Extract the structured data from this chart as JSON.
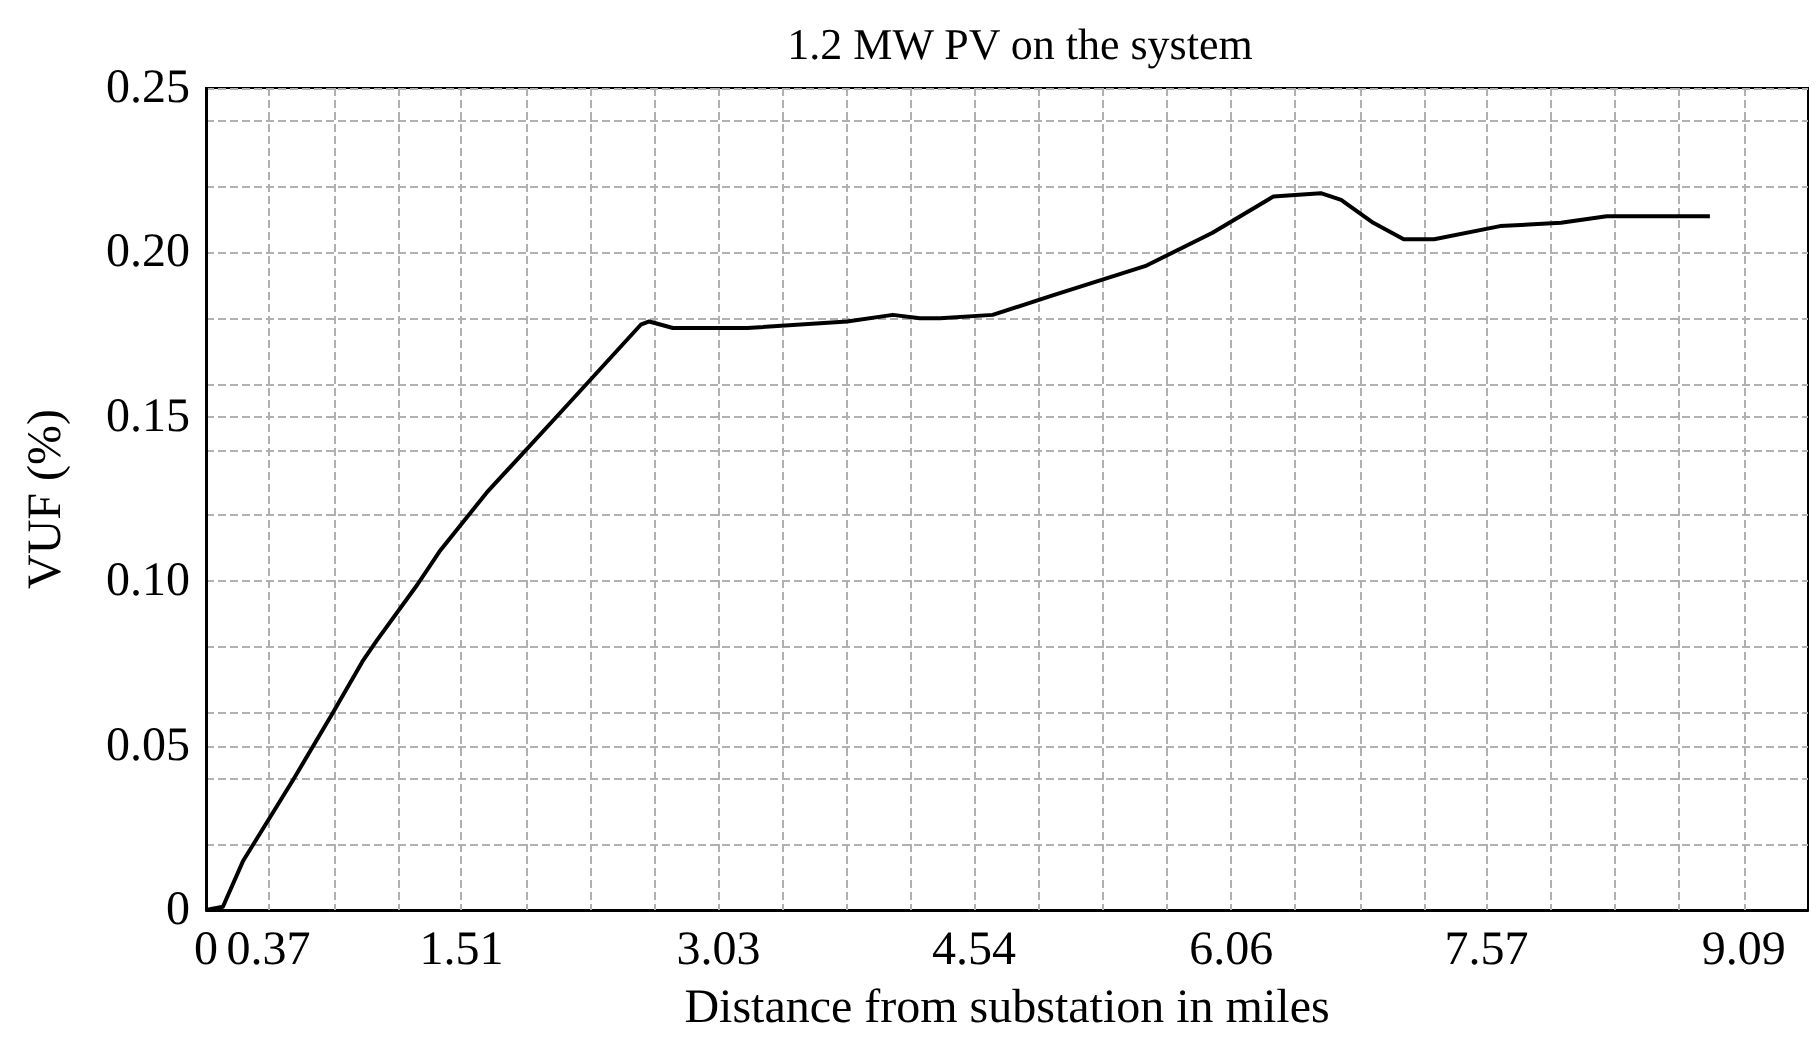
{
  "chart_data": {
    "type": "line",
    "title": "1.2 MW PV on the system",
    "xlabel": "Distance from substation in miles",
    "ylabel": "VUF (%)",
    "x": [
      0,
      0.1,
      0.22,
      0.52,
      0.75,
      0.93,
      1.01,
      1.25,
      1.38,
      1.66,
      2.09,
      2.57,
      2.62,
      2.76,
      3.2,
      3.79,
      4.06,
      4.22,
      4.34,
      4.65,
      5.01,
      5.56,
      5.95,
      6.31,
      6.59,
      6.71,
      6.9,
      7.08,
      7.26,
      7.65,
      8.01,
      8.28,
      8.89
    ],
    "series": [
      {
        "color": "#000000",
        "values": [
          0,
          0.001,
          0.015,
          0.04,
          0.06,
          0.076,
          0.082,
          0.099,
          0.109,
          0.127,
          0.151,
          0.178,
          0.179,
          0.177,
          0.177,
          0.179,
          0.181,
          0.18,
          0.18,
          0.181,
          0.187,
          0.196,
          0.206,
          0.217,
          0.218,
          0.216,
          0.209,
          0.204,
          0.204,
          0.208,
          0.209,
          0.211,
          0.211
        ]
      }
    ],
    "xlim": [
      0,
      9.47
    ],
    "xticks": [
      0,
      0.37,
      {
        "value": 0.76,
        "label": null
      },
      {
        "value": 1.14,
        "label": null
      },
      1.51,
      {
        "value": 1.89,
        "label": null
      },
      {
        "value": 2.27,
        "label": null
      },
      {
        "value": 2.65,
        "label": null
      },
      3.03,
      {
        "value": 3.41,
        "label": null
      },
      {
        "value": 3.79,
        "label": null
      },
      {
        "value": 4.17,
        "label": null
      },
      4.54,
      {
        "value": 4.92,
        "label": null
      },
      {
        "value": 5.3,
        "label": null
      },
      {
        "value": 5.68,
        "label": null
      },
      6.06,
      {
        "value": 6.44,
        "label": null
      },
      {
        "value": 6.82,
        "label": null
      },
      {
        "value": 7.2,
        "label": null
      },
      7.57,
      {
        "value": 7.95,
        "label": null
      },
      {
        "value": 8.33,
        "label": null
      },
      {
        "value": 8.71,
        "label": null
      },
      9.09
    ],
    "ylim": [
      0,
      0.25
    ],
    "yticks": [
      0,
      {
        "value": 0.02,
        "label": null
      },
      {
        "value": 0.04,
        "label": null
      },
      0.05,
      {
        "value": 0.06,
        "label": null
      },
      {
        "value": 0.08,
        "label": null
      },
      {
        "value": 0.1,
        "label": "0.10"
      },
      {
        "value": 0.12,
        "label": null
      },
      {
        "value": 0.14,
        "label": null
      },
      0.15,
      {
        "value": 0.16,
        "label": null
      },
      {
        "value": 0.18,
        "label": null
      },
      {
        "value": 0.2,
        "label": "0.20"
      },
      {
        "value": 0.22,
        "label": null
      },
      {
        "value": 0.24,
        "label": null
      },
      0.25
    ],
    "grid": true,
    "marker": "none",
    "line_style": "solid"
  }
}
